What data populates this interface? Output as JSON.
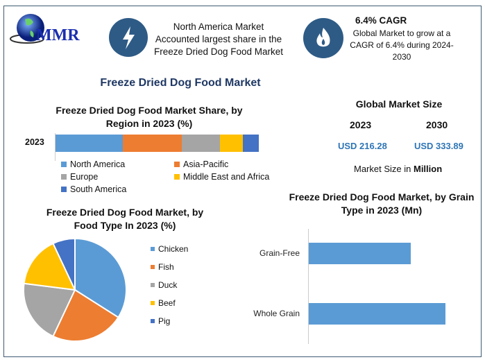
{
  "logo": {
    "text": "MMR"
  },
  "highlight1": {
    "icon": "lightning-icon",
    "lines": [
      "North America Market",
      "Accounted largest share in the",
      "Freeze Dried Dog Food Market"
    ]
  },
  "highlight2": {
    "icon": "flame-icon",
    "title": "6.4% CAGR",
    "lines": [
      "Global Market to grow at a",
      "CAGR of 6.4% during 2024-",
      "2030"
    ]
  },
  "main_title": "Freeze Dried Dog Food Market",
  "market_size": {
    "title": "Global Market Size",
    "year1": "2023",
    "year2": "2030",
    "value1": "USD 216.28",
    "value2": "USD 333.89",
    "note_prefix": "Market Size in ",
    "note_bold": "Million",
    "value_color": "#2e75b6"
  },
  "chart_data": [
    {
      "type": "bar",
      "orientation": "horizontal-stacked",
      "title": "Freeze Dried Dog Food Market Share, by Region in 2023 (%)",
      "categories": [
        "2023"
      ],
      "series": [
        {
          "name": "North America",
          "values": [
            33
          ],
          "color": "#5b9bd5"
        },
        {
          "name": "Asia-Pacific",
          "values": [
            29
          ],
          "color": "#ed7d31"
        },
        {
          "name": "Europe",
          "values": [
            19
          ],
          "color": "#a5a5a5"
        },
        {
          "name": "Middle East and Africa",
          "values": [
            11
          ],
          "color": "#ffc000"
        },
        {
          "name": "South America",
          "values": [
            8
          ],
          "color": "#4472c4"
        }
      ],
      "xlim": [
        0,
        100
      ],
      "legend": "bottom"
    },
    {
      "type": "pie",
      "title": "Freeze Dried Dog Food Market, by Food Type In 2023 (%)",
      "labels": [
        "Chicken",
        "Fish",
        "Duck",
        "Beef",
        "Pig"
      ],
      "values": [
        34,
        23,
        20,
        16,
        7
      ],
      "colors": [
        "#5b9bd5",
        "#ed7d31",
        "#a5a5a5",
        "#ffc000",
        "#4472c4"
      ],
      "legend": "right"
    },
    {
      "type": "bar",
      "orientation": "horizontal",
      "title": "Freeze Dried Dog Food Market, by Grain Type in 2023 (Mn)",
      "categories": [
        "Grain-Free",
        "Whole Grain"
      ],
      "values": [
        74.6,
        100
      ],
      "xlim": [
        0,
        100
      ],
      "color": "#5b9bd5"
    }
  ]
}
